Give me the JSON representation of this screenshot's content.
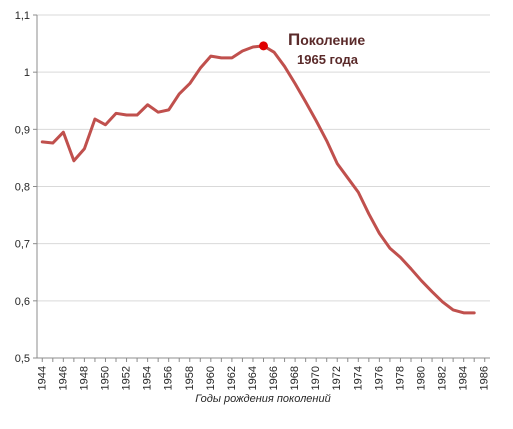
{
  "chart_data": {
    "type": "line",
    "xlabel": "Годы рождения поколений",
    "ylabel": "",
    "title": "",
    "ylim": [
      0.5,
      1.1
    ],
    "xlim": [
      1943.5,
      1986.5
    ],
    "y_ticks": [
      "0,5",
      "0,6",
      "0,7",
      "0,8",
      "0,9",
      "1",
      "1,1"
    ],
    "y_tick_values": [
      0.5,
      0.6,
      0.7,
      0.8,
      0.9,
      1.0,
      1.1
    ],
    "x_ticks": [
      "1944",
      "1946",
      "1948",
      "1950",
      "1952",
      "1954",
      "1956",
      "1958",
      "1960",
      "1962",
      "1964",
      "1966",
      "1968",
      "1970",
      "1972",
      "1974",
      "1976",
      "1978",
      "1980",
      "1982",
      "1984",
      "1986"
    ],
    "x_tick_values": [
      1944,
      1946,
      1948,
      1950,
      1952,
      1954,
      1956,
      1958,
      1960,
      1962,
      1964,
      1966,
      1968,
      1970,
      1972,
      1974,
      1976,
      1978,
      1980,
      1982,
      1984,
      1986
    ],
    "grid": "horizontal",
    "legend": "none",
    "series": [
      {
        "color": "#c0504d",
        "x": [
          1944,
          1945,
          1946,
          1947,
          1948,
          1949,
          1950,
          1951,
          1952,
          1953,
          1954,
          1955,
          1956,
          1957,
          1958,
          1959,
          1960,
          1961,
          1962,
          1963,
          1964,
          1965,
          1966,
          1967,
          1968,
          1969,
          1970,
          1971,
          1972,
          1973,
          1974,
          1975,
          1976,
          1977,
          1978,
          1979,
          1980,
          1981,
          1982,
          1983,
          1984,
          1985
        ],
        "values": [
          0.878,
          0.876,
          0.895,
          0.845,
          0.866,
          0.918,
          0.908,
          0.928,
          0.925,
          0.925,
          0.943,
          0.93,
          0.934,
          0.962,
          0.98,
          1.007,
          1.028,
          1.025,
          1.025,
          1.037,
          1.044,
          1.046,
          1.035,
          1.01,
          0.98,
          0.948,
          0.915,
          0.88,
          0.84,
          0.815,
          0.79,
          0.752,
          0.718,
          0.692,
          0.676,
          0.656,
          0.635,
          0.616,
          0.598,
          0.584,
          0.579,
          0.579
        ]
      }
    ],
    "highlight": {
      "x": 1965,
      "value": 1.046,
      "color": "#e00000"
    },
    "annotation": {
      "line1_initial": "П",
      "line1_rest": "околение",
      "line2": "1965 года"
    }
  }
}
